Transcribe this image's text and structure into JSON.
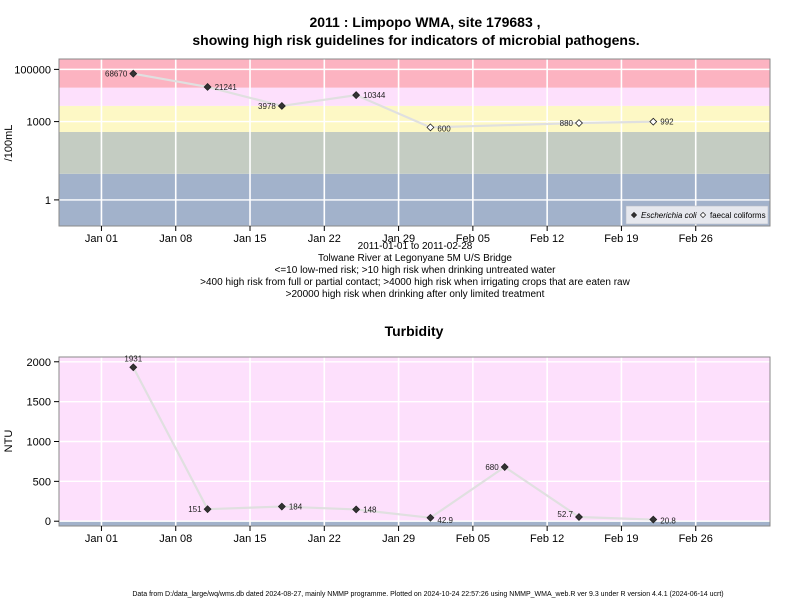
{
  "colors": {
    "band_red": "#fcb3c1",
    "band_pink": "#fde0fc",
    "band_yellow": "#fdf8c5",
    "band_green": "#c4ccc2",
    "band_blue": "#a2b2cb",
    "series_line": "#e0e0e0",
    "point_fill": "#333333",
    "grid": "#ffffff"
  },
  "footer": "Data from D:/data_large/wq/wms.db dated 2024-08-27, mainly NMMP programme. Plotted on 2024-10-24 22:57:26 using NMMP_WMA_web.R ver 9.3 under R version 4.4.1 (2024-06-14 ucrt)",
  "chart_data": [
    {
      "type": "line",
      "title_line1": "2011 : Limpopo WMA, site 179683 ,",
      "title_line2": "showing high risk guidelines for indicators of microbial pathogens.",
      "ylabel": "/100mL",
      "yscale": "log",
      "ylim": [
        0.1,
        250000
      ],
      "yticks": [
        1,
        1000,
        100000
      ],
      "ytick_labels": [
        "1",
        "1000",
        "100000"
      ],
      "xlim": [
        "2010-12-28",
        "2011-03-05"
      ],
      "xticks": [
        "2011-01-01",
        "2011-01-08",
        "2011-01-15",
        "2011-01-22",
        "2011-01-29",
        "2011-02-05",
        "2011-02-12",
        "2011-02-19",
        "2011-02-26"
      ],
      "xtick_labels": [
        "Jan 01",
        "Jan 08",
        "Jan 15",
        "Jan 22",
        "Jan 29",
        "Feb 05",
        "Feb 12",
        "Feb 19",
        "Feb 26"
      ],
      "caption": [
        "2011-01-01 to 2011-02-28",
        "Tolwane River at Legonyane 5M U/S Bridge",
        "<=10 low-med risk; >10 high risk when drinking untreated water",
        ">400 high risk from full or partial contact; >4000 high risk when irrigating crops that are eaten raw",
        ">20000 high risk when drinking after only limited treatment"
      ],
      "bands": [
        {
          "from": 0.1,
          "to": 10,
          "color": "band_blue"
        },
        {
          "from": 10,
          "to": 400,
          "color": "band_green"
        },
        {
          "from": 400,
          "to": 4000,
          "color": "band_yellow"
        },
        {
          "from": 4000,
          "to": 20000,
          "color": "band_pink"
        },
        {
          "from": 20000,
          "to": 250000,
          "color": "band_red"
        }
      ],
      "legend": {
        "placement": "bottom-right",
        "entries": [
          "Escherichia coli",
          "faecal coliforms"
        ]
      },
      "series": [
        {
          "name": "Escherichia coli",
          "marker": "filled-diamond",
          "x": [
            "2011-01-04",
            "2011-01-11",
            "2011-01-18",
            "2011-01-25"
          ],
          "y": [
            68670,
            21241,
            3978,
            10344
          ],
          "labels": [
            "68670",
            "21241",
            "3978",
            "10344"
          ]
        },
        {
          "name": "faecal coliforms",
          "marker": "open-diamond",
          "x": [
            "2011-02-01",
            "2011-02-15",
            "2011-02-22"
          ],
          "y": [
            600,
            880,
            992
          ],
          "labels": [
            "600",
            "880",
            "992"
          ]
        }
      ]
    },
    {
      "type": "line",
      "title": "Turbidity",
      "ylabel": "NTU",
      "yscale": "linear",
      "ylim": [
        -60,
        2060
      ],
      "yticks": [
        0,
        500,
        1000,
        1500,
        2000
      ],
      "ytick_labels": [
        "0",
        "500",
        "1000",
        "1500",
        "2000"
      ],
      "xlim": [
        "2010-12-28",
        "2011-03-05"
      ],
      "xticks": [
        "2011-01-01",
        "2011-01-08",
        "2011-01-15",
        "2011-01-22",
        "2011-01-29",
        "2011-02-05",
        "2011-02-12",
        "2011-02-19",
        "2011-02-26"
      ],
      "xtick_labels": [
        "Jan 01",
        "Jan 08",
        "Jan 15",
        "Jan 22",
        "Jan 29",
        "Feb 05",
        "Feb 12",
        "Feb 19",
        "Feb 26"
      ],
      "bands": [
        {
          "from": -60,
          "to": 0,
          "color": "band_blue"
        },
        {
          "from": 0,
          "to": 2060,
          "color": "band_pink"
        }
      ],
      "series": [
        {
          "name": "",
          "marker": "filled-diamond",
          "x": [
            "2011-01-04",
            "2011-01-11",
            "2011-01-18",
            "2011-01-25",
            "2011-02-01",
            "2011-02-08",
            "2011-02-15",
            "2011-02-22"
          ],
          "y": [
            1931,
            151,
            184,
            148,
            42.9,
            680,
            52.7,
            20.8
          ],
          "labels": [
            "1931",
            "151",
            "184",
            "148",
            "42.9",
            "680",
            "52.7",
            "20.8"
          ]
        }
      ]
    }
  ]
}
